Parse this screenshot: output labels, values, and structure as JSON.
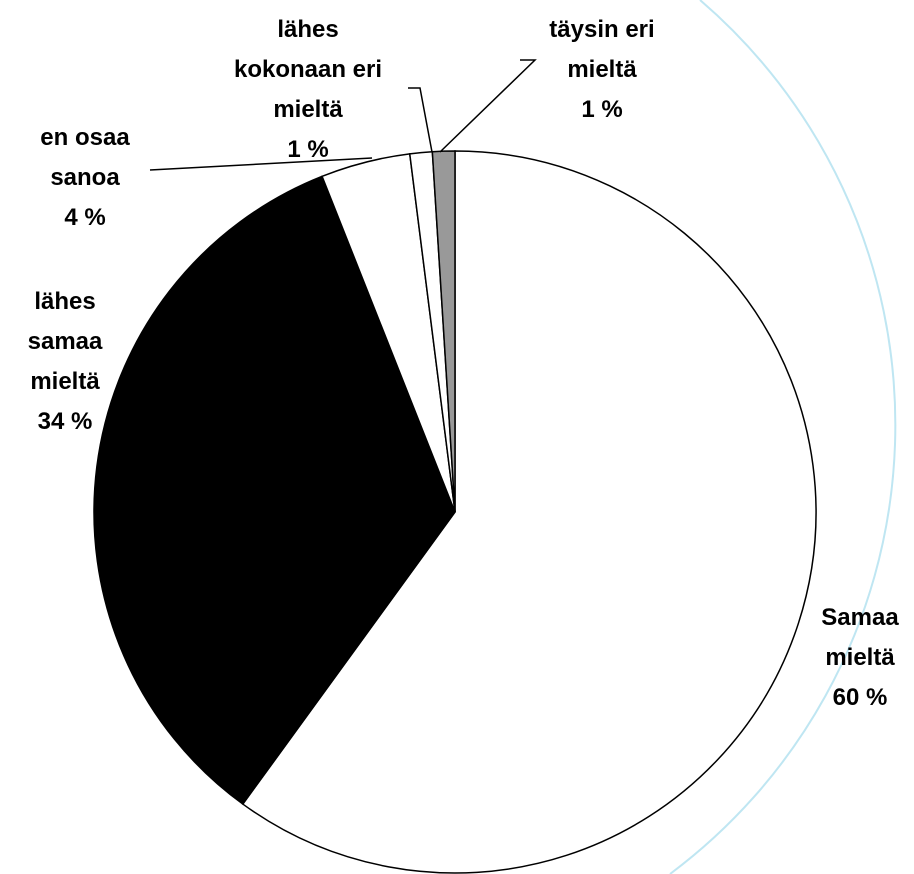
{
  "chart_data": {
    "type": "pie",
    "categories": [
      "Samaa mieltä",
      "lähes samaa mieltä",
      "en osaa sanoa",
      "lähes kokonaan eri mieltä",
      "täysin eri mieltä"
    ],
    "values": [
      60,
      34,
      4,
      1,
      1
    ],
    "value_labels": [
      "60 %",
      "34 %",
      "4 %",
      "1 %",
      "1 %"
    ],
    "colors": [
      "#ffffff",
      "#000000",
      "#ffffff",
      "#ffffff",
      "#999999"
    ]
  }
}
